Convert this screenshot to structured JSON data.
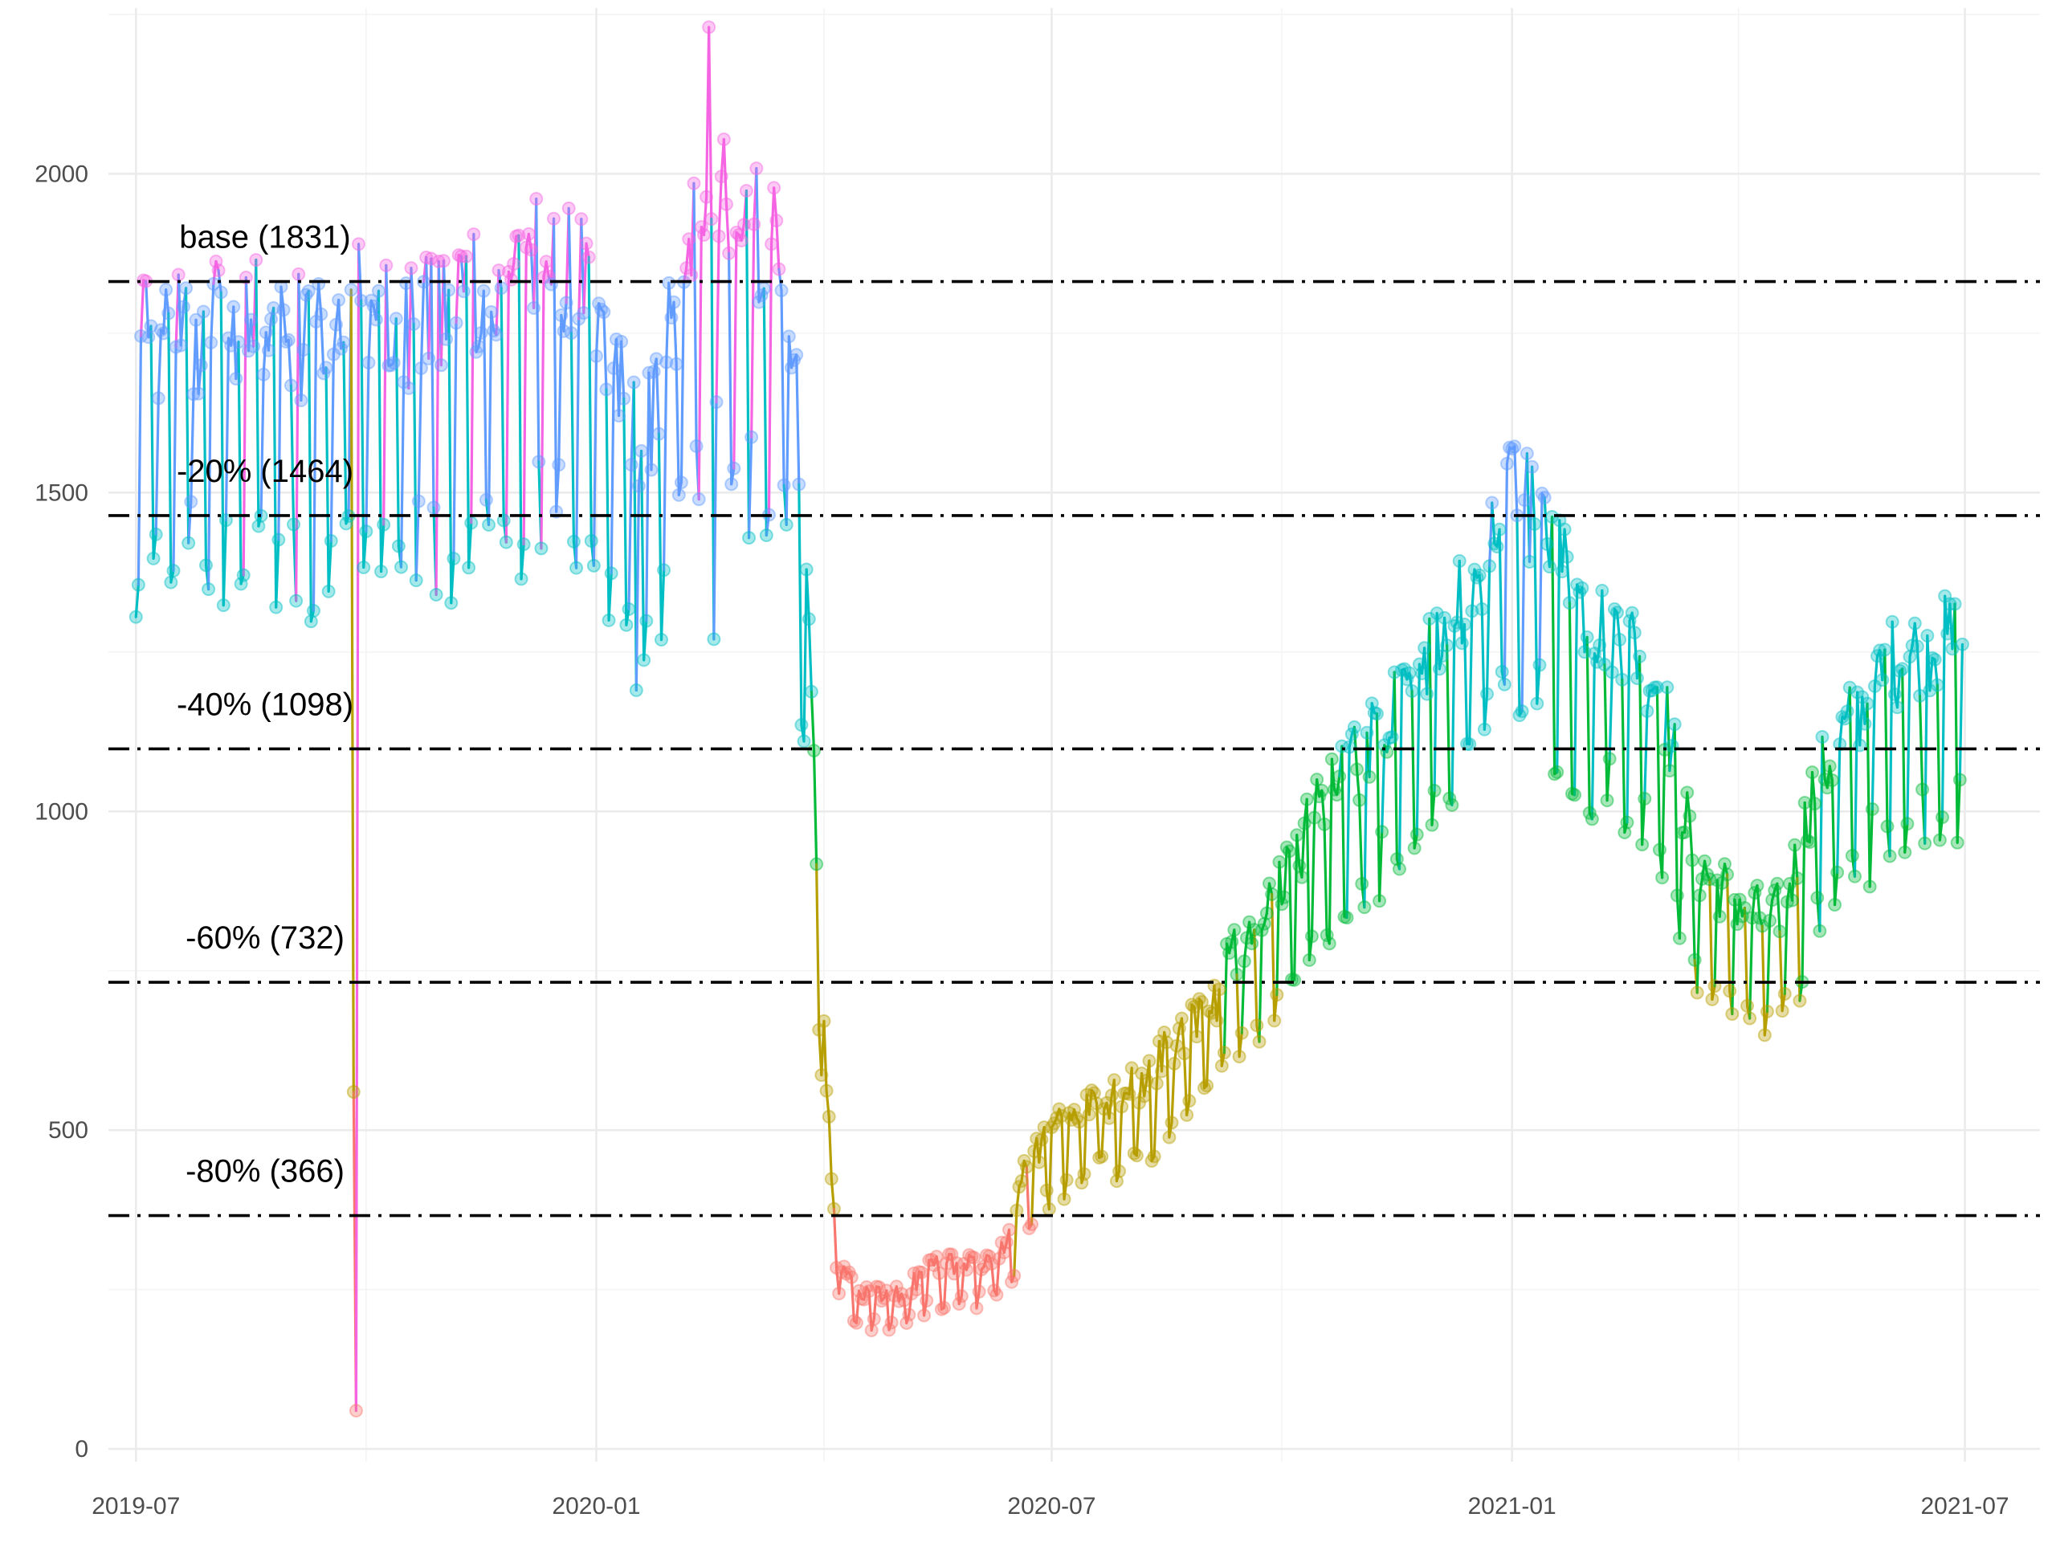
{
  "chart_data": {
    "type": "line",
    "title": "",
    "xlabel": "",
    "ylabel": "",
    "x_range": [
      "2019-06-20",
      "2021-07-31"
    ],
    "ylim": [
      -20,
      2260
    ],
    "grid": true,
    "legend": "none",
    "x_ticks": [
      {
        "date": "2019-07-01",
        "label": "2019-07"
      },
      {
        "date": "2020-01-01",
        "label": "2020-01"
      },
      {
        "date": "2020-07-01",
        "label": "2020-07"
      },
      {
        "date": "2021-01-01",
        "label": "2021-01"
      },
      {
        "date": "2021-07-01",
        "label": "2021-07"
      }
    ],
    "y_ticks": [
      0,
      500,
      1000,
      1500,
      2000
    ],
    "reference_lines": [
      {
        "value": 1831,
        "label": "base (1831)"
      },
      {
        "value": 1464,
        "label": "-20% (1464)"
      },
      {
        "value": 1098,
        "label": "-40% (1098)"
      },
      {
        "value": 732,
        "label": "-60% (732)"
      },
      {
        "value": 366,
        "label": "-80% (366)"
      }
    ],
    "band_colors": {
      "above_base": "#F564E3",
      "base_to_minus20": "#619CFF",
      "minus20_to_minus40": "#00BFC4",
      "minus40_to_minus60": "#00BA38",
      "minus60_to_minus80": "#B79F00",
      "below_minus80": "#F8766D"
    },
    "series_anchors": [
      [
        "2019-07-01",
        1750
      ],
      [
        "2019-08-01",
        1760
      ],
      [
        "2019-08-15",
        1800
      ],
      [
        "2019-09-01",
        1740
      ],
      [
        "2019-09-15",
        1750
      ],
      [
        "2019-09-29",
        1790
      ],
      [
        "2019-10-01",
        1750
      ],
      [
        "2019-11-01",
        1780
      ],
      [
        "2019-12-01",
        1830
      ],
      [
        "2019-12-15",
        1880
      ],
      [
        "2020-01-01",
        1790
      ],
      [
        "2020-01-10",
        1700
      ],
      [
        "2020-01-20",
        1560
      ],
      [
        "2020-02-01",
        1780
      ],
      [
        "2020-02-15",
        1960
      ],
      [
        "2020-03-01",
        1920
      ],
      [
        "2020-03-14",
        1900
      ],
      [
        "2020-03-20",
        1720
      ],
      [
        "2020-03-24",
        1430
      ],
      [
        "2020-03-27",
        1230
      ],
      [
        "2020-03-30",
        820
      ],
      [
        "2020-04-02",
        540
      ],
      [
        "2020-04-05",
        400
      ],
      [
        "2020-04-08",
        280
      ],
      [
        "2020-04-15",
        250
      ],
      [
        "2020-05-01",
        240
      ],
      [
        "2020-05-15",
        290
      ],
      [
        "2020-06-01",
        290
      ],
      [
        "2020-06-15",
        330
      ],
      [
        "2020-06-20",
        440
      ],
      [
        "2020-07-01",
        500
      ],
      [
        "2020-07-15",
        540
      ],
      [
        "2020-08-01",
        560
      ],
      [
        "2020-08-15",
        620
      ],
      [
        "2020-09-01",
        680
      ],
      [
        "2020-09-15",
        800
      ],
      [
        "2020-10-01",
        880
      ],
      [
        "2020-10-15",
        1000
      ],
      [
        "2020-11-01",
        1080
      ],
      [
        "2020-11-15",
        1180
      ],
      [
        "2020-12-01",
        1240
      ],
      [
        "2020-12-15",
        1360
      ],
      [
        "2021-01-01",
        1500
      ],
      [
        "2021-01-15",
        1440
      ],
      [
        "2021-02-01",
        1300
      ],
      [
        "2021-02-15",
        1280
      ],
      [
        "2021-03-01",
        1200
      ],
      [
        "2021-03-15",
        920
      ],
      [
        "2021-04-01",
        860
      ],
      [
        "2021-04-15",
        820
      ],
      [
        "2021-04-25",
        920
      ],
      [
        "2021-05-01",
        1030
      ],
      [
        "2021-05-15",
        1130
      ],
      [
        "2021-06-01",
        1230
      ],
      [
        "2021-06-15",
        1260
      ],
      [
        "2021-06-30",
        1270
      ]
    ],
    "weekend_dip_factors": [
      1,
      0.79,
      0.8,
      1,
      1,
      1,
      1
    ],
    "series_noise": 0.06,
    "outliers": [
      {
        "date": "2019-09-26",
        "value": 560
      },
      {
        "date": "2019-09-27",
        "value": 60
      },
      {
        "date": "2020-02-15",
        "value": 2230
      },
      {
        "date": "2020-02-17",
        "value": 1270
      },
      {
        "date": "2020-01-17",
        "value": 1190
      }
    ]
  }
}
